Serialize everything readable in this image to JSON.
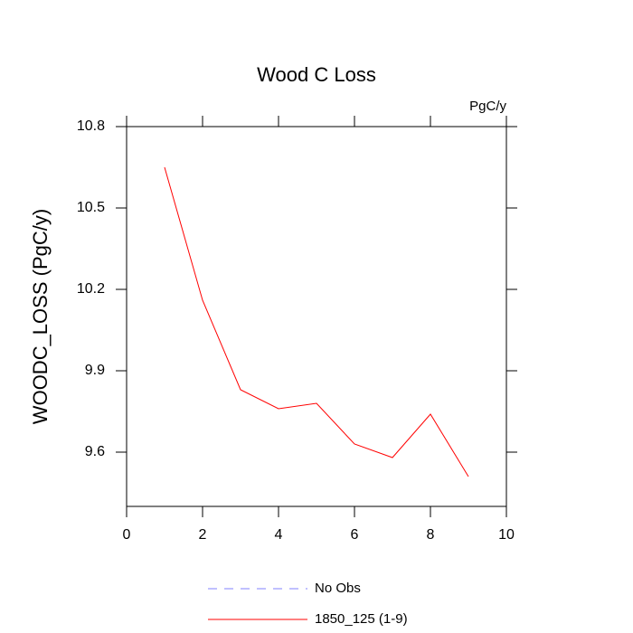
{
  "chart_data": {
    "type": "line",
    "title": "Wood C Loss",
    "units": "PgC/y",
    "y_label": "WOODC_LOSS  (PgC/y)",
    "x": [
      1,
      2,
      3,
      4,
      5,
      6,
      7,
      8,
      9
    ],
    "series": [
      {
        "name": "No Obs",
        "color": "#8080ff",
        "dashed": true,
        "values": [
          null,
          null,
          null,
          null,
          null,
          null,
          null,
          null,
          null
        ]
      },
      {
        "name": "1850_125 (1-9)",
        "color": "#ff0000",
        "dashed": false,
        "values": [
          10.65,
          10.16,
          9.83,
          9.76,
          9.78,
          9.63,
          9.58,
          9.74,
          9.51
        ]
      }
    ],
    "xlim": [
      0,
      10
    ],
    "xticks": [
      0,
      2,
      4,
      6,
      8,
      10
    ],
    "ylim": [
      9.4,
      10.8
    ],
    "yticks": [
      9.6,
      9.9,
      10.2,
      10.5,
      10.8
    ]
  }
}
